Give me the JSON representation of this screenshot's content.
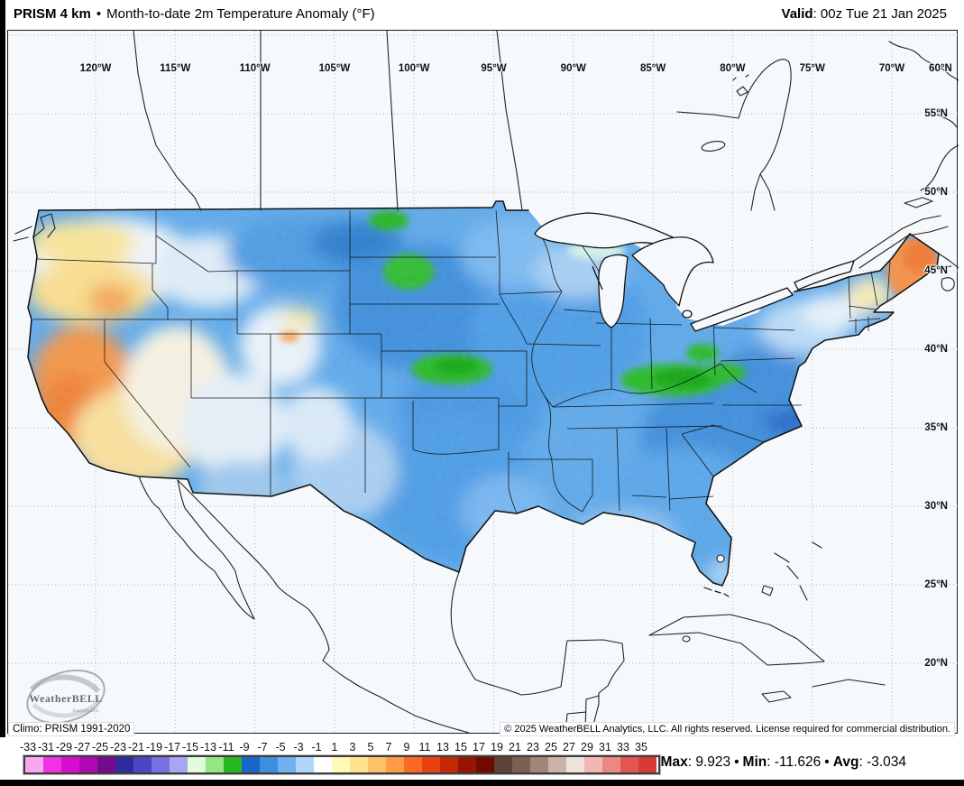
{
  "header": {
    "product": "PRISM 4 km",
    "separator": "•",
    "title": "Month-to-date 2m Temperature Anomaly (°F)",
    "valid_label": "Valid",
    "valid_value": ": 00z Tue 21 Jan 2025"
  },
  "map": {
    "lon_labels": [
      "120°W",
      "115°W",
      "110°W",
      "105°W",
      "100°W",
      "95°W",
      "90°W",
      "85°W",
      "80°W",
      "75°W",
      "70°W"
    ],
    "corner_label": "60°N",
    "lat_labels": [
      "55°N",
      "50°N",
      "45°N",
      "40°N",
      "35°N",
      "30°N",
      "25°N",
      "20°N"
    ],
    "climo": "Climo: PRISM 1991-2020",
    "copyright": "© 2025 WeatherBELL Analytics, LLC. All rights reserved. License required for commercial distribution.",
    "logo": {
      "line1": "WeatherBELL",
      "line2": "Analytics LLC"
    }
  },
  "colorbar": {
    "ticks": [
      "-33",
      "-31",
      "-29",
      "-27",
      "-25",
      "-23",
      "-21",
      "-19",
      "-17",
      "-15",
      "-13",
      "-11",
      "-9",
      "-7",
      "-5",
      "-3",
      "-1",
      "1",
      "3",
      "5",
      "7",
      "9",
      "11",
      "13",
      "15",
      "17",
      "19",
      "21",
      "23",
      "25",
      "27",
      "29",
      "31",
      "33",
      "35"
    ],
    "colors": [
      "#f7a8ee",
      "#ef33e2",
      "#d90dce",
      "#ae0ab4",
      "#750b8a",
      "#2f2b9f",
      "#4a46c4",
      "#7770e0",
      "#aaa5f3",
      "#e2fbd8",
      "#93e683",
      "#27b81f",
      "#1866c8",
      "#3a8fe0",
      "#6fb1ee",
      "#b0d7f7",
      "#ffffff",
      "#fffab8",
      "#ffe48f",
      "#ffc166",
      "#ff9b45",
      "#f96b25",
      "#e8430e",
      "#c22a06",
      "#951504",
      "#6e0c02",
      "#5c4338",
      "#7d5f53",
      "#a28478",
      "#c9b3a9",
      "#efe2dc",
      "#f4b6b2",
      "#ee8783",
      "#e25550",
      "#d93a34"
    ]
  },
  "stats": {
    "max_label": "Max",
    "max_value": ": 9.923",
    "min_label": "Min",
    "min_value": ": -11.626",
    "avg_label": "Avg",
    "avg_value": ": -3.034",
    "separator": "•"
  }
}
